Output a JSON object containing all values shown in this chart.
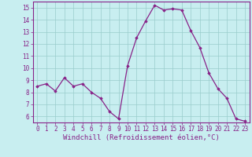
{
  "x": [
    0,
    1,
    2,
    3,
    4,
    5,
    6,
    7,
    8,
    9,
    10,
    11,
    12,
    13,
    14,
    15,
    16,
    17,
    18,
    19,
    20,
    21,
    22,
    23
  ],
  "y": [
    8.5,
    8.7,
    8.1,
    9.2,
    8.5,
    8.7,
    8.0,
    7.5,
    6.4,
    5.8,
    10.2,
    12.5,
    13.9,
    15.2,
    14.8,
    14.9,
    14.8,
    13.1,
    11.7,
    9.6,
    8.3,
    7.5,
    5.8,
    5.6
  ],
  "line_color": "#882288",
  "marker": "D",
  "marker_size": 1.8,
  "linewidth": 0.9,
  "xlabel": "Windchill (Refroidissement éolien,°C)",
  "xlim": [
    -0.5,
    23.5
  ],
  "ylim": [
    5.5,
    15.5
  ],
  "yticks": [
    6,
    7,
    8,
    9,
    10,
    11,
    12,
    13,
    14,
    15
  ],
  "xticks": [
    0,
    1,
    2,
    3,
    4,
    5,
    6,
    7,
    8,
    9,
    10,
    11,
    12,
    13,
    14,
    15,
    16,
    17,
    18,
    19,
    20,
    21,
    22,
    23
  ],
  "grid_color": "#99cccc",
  "background_color": "#c8eef0",
  "tick_color": "#882288",
  "label_color": "#882288",
  "tick_fontsize": 5.5,
  "xlabel_fontsize": 6.5,
  "spine_color": "#882288"
}
